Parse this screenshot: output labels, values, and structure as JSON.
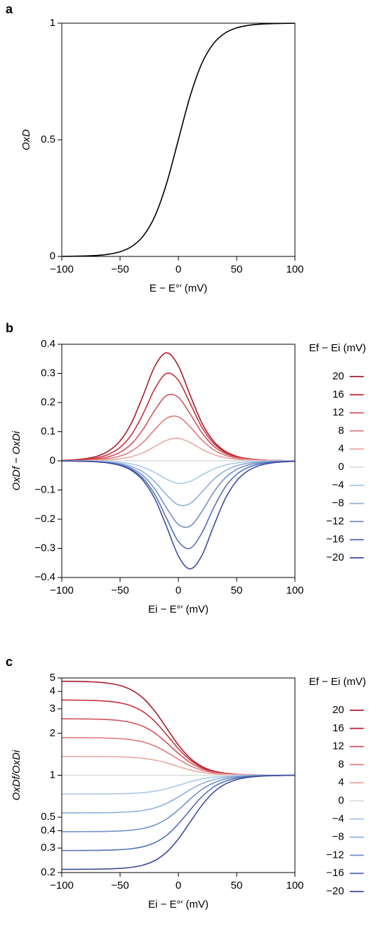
{
  "chart_data": [
    {
      "type": "line",
      "panel_label": "a",
      "x_label": "E − E°′ (mV)",
      "y_label": "OxD",
      "x": [
        -100,
        -90,
        -80,
        -70,
        -60,
        -50,
        -40,
        -30,
        -20,
        -10,
        0,
        10,
        20,
        30,
        40,
        50,
        60,
        70,
        80,
        90,
        100
      ],
      "xlim": [
        -100,
        100
      ],
      "xticks": [
        {
          "value": -100,
          "label": "−100"
        },
        {
          "value": -50,
          "label": "−50"
        },
        0,
        50,
        100
      ],
      "ylim": [
        0,
        1
      ],
      "yticks": [
        0,
        0.5,
        1
      ],
      "series": [
        {
          "color": "#000000",
          "values": [
            0.0004,
            0.0009,
            0.002,
            0.0043,
            0.0093,
            0.02,
            0.0426,
            0.0883,
            0.1741,
            0.3147,
            0.5,
            0.6853,
            0.8259,
            0.9117,
            0.9574,
            0.98,
            0.9907,
            0.9957,
            0.998,
            0.9991,
            0.9996
          ]
        }
      ]
    },
    {
      "type": "line",
      "panel_label": "b",
      "x_label": "Ei − E°′ (mV)",
      "y_label": "OxDf − OxDi",
      "legend_title": "Ef − Ei (mV)",
      "legend_position": "right",
      "x": [
        -100,
        -90,
        -80,
        -70,
        -60,
        -50,
        -40,
        -30,
        -20,
        -10,
        0,
        10,
        20,
        30,
        40,
        50,
        60,
        70,
        80,
        90,
        100
      ],
      "xlim": [
        -100,
        100
      ],
      "xticks": [
        {
          "value": -100,
          "label": "−100"
        },
        {
          "value": -50,
          "label": "−50"
        },
        0,
        50,
        100
      ],
      "ylim": [
        -0.4,
        0.4
      ],
      "yticks": [
        {
          "value": -0.4,
          "label": "−0.4"
        },
        {
          "value": -0.3,
          "label": "−0.3"
        },
        {
          "value": -0.2,
          "label": "−0.2"
        },
        {
          "value": -0.1,
          "label": "−0.1"
        },
        0,
        0.1,
        0.2,
        0.3,
        0.4
      ],
      "series": [
        {
          "name": "20",
          "color": "#a81c2c",
          "values": [
            0.0016,
            0.0034,
            0.0073,
            0.0157,
            0.0333,
            0.0683,
            0.1316,
            0.2264,
            0.3259,
            0.3706,
            0.3259,
            0.2264,
            0.1316,
            0.0683,
            0.0333,
            0.0157,
            0.0073,
            0.0034,
            0.0016,
            0.0007,
            0.0003
          ]
        },
        {
          "name": "16",
          "color": "#c5303e",
          "values": [
            0.001,
            0.0022,
            0.0048,
            0.0104,
            0.0222,
            0.0462,
            0.0912,
            0.1634,
            0.2487,
            0.3,
            0.2765,
            0.1979,
            0.1169,
            0.0612,
            0.0299,
            0.0142,
            0.0066,
            0.003,
            0.0014,
            0.0006,
            0.0003
          ]
        },
        {
          "name": "12",
          "color": "#d4525a",
          "values": [
            0.0006,
            0.0014,
            0.003,
            0.0065,
            0.014,
            0.0294,
            0.0591,
            0.1094,
            0.175,
            0.2242,
            0.2179,
            0.1618,
            0.0976,
            0.0516,
            0.0254,
            0.012,
            0.0056,
            0.0026,
            0.0012,
            0.0006,
            0.0003
          ]
        },
        {
          "name": "8",
          "color": "#df7a78",
          "values": [
            0.0004,
            0.0008,
            0.0017,
            0.0037,
            0.0079,
            0.0166,
            0.034,
            0.0646,
            0.108,
            0.1465,
            0.1508,
            0.117,
            0.0725,
            0.0389,
            0.0193,
            0.0092,
            0.0043,
            0.002,
            0.0009,
            0.0004,
            0.0002
          ]
        },
        {
          "name": "4",
          "color": "#eaa9a3",
          "values": [
            0.0002,
            0.0003,
            0.0007,
            0.0016,
            0.0033,
            0.0071,
            0.0147,
            0.0285,
            0.0494,
            0.0706,
            0.0772,
            0.063,
            0.0404,
            0.0221,
            0.011,
            0.0053,
            0.0025,
            0.0011,
            0.0005,
            0.0002,
            0.0001
          ]
        },
        {
          "name": "0",
          "color": "#dcdcdc",
          "values": [
            0,
            0,
            0,
            0,
            0,
            0,
            0,
            0,
            0,
            0,
            0,
            0,
            0,
            0,
            0,
            0,
            0,
            0,
            0,
            0,
            0
          ]
        },
        {
          "name": "−4",
          "color": "#abc9e7",
          "values": [
            -0.0001,
            -0.0002,
            -0.0005,
            -0.0011,
            -0.0025,
            -0.0053,
            -0.011,
            -0.0221,
            -0.0404,
            -0.063,
            -0.0772,
            -0.0706,
            -0.0494,
            -0.0285,
            -0.0147,
            -0.0071,
            -0.0033,
            -0.0016,
            -0.0007,
            -0.0003,
            -0.0002
          ]
        },
        {
          "name": "−8",
          "color": "#8eafda",
          "values": [
            -0.0002,
            -0.0004,
            -0.0009,
            -0.002,
            -0.0043,
            -0.0092,
            -0.0193,
            -0.0389,
            -0.0725,
            -0.117,
            -0.1508,
            -0.1465,
            -0.108,
            -0.0646,
            -0.034,
            -0.0166,
            -0.0079,
            -0.0037,
            -0.0017,
            -0.0008,
            -0.0004
          ]
        },
        {
          "name": "−12",
          "color": "#7190c7",
          "values": [
            -0.0003,
            -0.0006,
            -0.0012,
            -0.0026,
            -0.0056,
            -0.012,
            -0.0254,
            -0.0516,
            -0.0976,
            -0.1618,
            -0.2179,
            -0.2242,
            -0.175,
            -0.1094,
            -0.0591,
            -0.0294,
            -0.014,
            -0.0065,
            -0.003,
            -0.0014,
            -0.0006
          ]
        },
        {
          "name": "−16",
          "color": "#5670b5",
          "values": [
            -0.0003,
            -0.0006,
            -0.0014,
            -0.003,
            -0.0066,
            -0.0142,
            -0.0299,
            -0.0612,
            -0.1169,
            -0.1979,
            -0.2765,
            -0.3,
            -0.2487,
            -0.1634,
            -0.0912,
            -0.0462,
            -0.0222,
            -0.0104,
            -0.0048,
            -0.0022,
            -0.001
          ]
        },
        {
          "name": "−20",
          "color": "#3d4c9e",
          "values": [
            -0.0003,
            -0.0007,
            -0.0016,
            -0.0034,
            -0.0073,
            -0.0157,
            -0.0333,
            -0.0683,
            -0.1316,
            -0.2264,
            -0.3259,
            -0.3706,
            -0.3259,
            -0.2264,
            -0.1316,
            -0.0683,
            -0.0333,
            -0.0157,
            -0.0073,
            -0.0034,
            -0.0016
          ]
        }
      ]
    },
    {
      "type": "line",
      "panel_label": "c",
      "x_label": "Ei − E°′ (mV)",
      "y_label": "OxDf/OxDi",
      "legend_title": "Ef − Ei (mV)",
      "legend_position": "right",
      "yscale": "log",
      "x": [
        -100,
        -90,
        -80,
        -70,
        -60,
        -50,
        -40,
        -30,
        -20,
        -10,
        0,
        10,
        20,
        30,
        40,
        50,
        60,
        70,
        80,
        90,
        100
      ],
      "xlim": [
        -100,
        100
      ],
      "xticks": [
        {
          "value": -100,
          "label": "−100"
        },
        {
          "value": -50,
          "label": "−50"
        },
        0,
        50,
        100
      ],
      "ylim": [
        0.2,
        5
      ],
      "yticks": [
        0.2,
        0.3,
        0.4,
        0.5,
        1,
        2,
        3,
        4,
        5
      ],
      "series": [
        {
          "name": "20",
          "color": "#a81c2c",
          "values": [
            4.7353,
            4.7265,
            4.7078,
            4.6678,
            4.5835,
            4.4124,
            4.0909,
            3.5649,
            2.8714,
            2.1778,
            1.6517,
            1.3304,
            1.1593,
            1.0749,
            1.0348,
            1.016,
            1.0074,
            1.0034,
            1.0016,
            1.0007,
            1.0003
          ]
        },
        {
          "name": "16",
          "color": "#c5303e",
          "values": [
            3.4703,
            3.466,
            3.4571,
            3.4374,
            3.396,
            3.3101,
            3.1429,
            2.8512,
            2.428,
            1.9533,
            1.553,
            1.2888,
            1.1416,
            1.0671,
            1.0313,
            1.0144,
            1.0067,
            1.0031,
            1.0014,
            1.0006,
            1.0003
          ]
        },
        {
          "name": "12",
          "color": "#d4525a",
          "values": [
            2.543,
            2.541,
            2.5369,
            2.5278,
            2.5086,
            2.4683,
            2.3876,
            2.2393,
            2.0053,
            1.7123,
            1.4358,
            1.2361,
            1.1182,
            1.0566,
            1.0265,
            1.0123,
            1.0057,
            1.0026,
            1.0012,
            1.0005,
            1.0003
          ]
        },
        {
          "name": "8",
          "color": "#df7a78",
          "values": [
            1.8632,
            1.8624,
            1.8607,
            1.8569,
            1.849,
            1.8322,
            1.7977,
            1.7318,
            1.6201,
            1.4655,
            1.3016,
            1.1708,
            1.0878,
            1.0427,
            1.0201,
            1.0094,
            1.0043,
            1.002,
            1.0009,
            1.0004,
            1.0002
          ]
        },
        {
          "name": "4",
          "color": "#eaa9a3",
          "values": [
            1.365,
            1.3648,
            1.3642,
            1.3631,
            1.3606,
            1.3553,
            1.3443,
            1.3226,
            1.2836,
            1.2245,
            1.1544,
            1.0919,
            1.0489,
            1.0242,
            1.0115,
            1.0054,
            1.0025,
            1.0011,
            1.0005,
            1.0002,
            1.0001
          ]
        },
        {
          "name": "0",
          "color": "#dcdcdc",
          "values": [
            1,
            1,
            1,
            1,
            1,
            1,
            1,
            1,
            1,
            1,
            1,
            1,
            1,
            1,
            1,
            1,
            1,
            1,
            1,
            1,
            1
          ]
        },
        {
          "name": "−4",
          "color": "#abc9e7",
          "values": [
            0.7326,
            0.7327,
            0.7329,
            0.7333,
            0.7343,
            0.7364,
            0.7409,
            0.7502,
            0.7683,
            0.7998,
            0.8456,
            0.8969,
            0.9402,
            0.9688,
            0.9847,
            0.9927,
            0.9966,
            0.9984,
            0.9993,
            0.9997,
            0.9999
          ]
        },
        {
          "name": "−8",
          "color": "#8eafda",
          "values": [
            0.5366,
            0.5367,
            0.537,
            0.5376,
            0.5389,
            0.5416,
            0.5473,
            0.5594,
            0.5836,
            0.6281,
            0.6984,
            0.7863,
            0.8692,
            0.9291,
            0.9645,
            0.983,
            0.992,
            0.9963,
            0.9983,
            0.9992,
            0.9996
          ]
        },
        {
          "name": "−12",
          "color": "#7190c7",
          "values": [
            0.3931,
            0.3932,
            0.3935,
            0.394,
            0.3952,
            0.3978,
            0.4034,
            0.4152,
            0.4394,
            0.4858,
            0.5642,
            0.6729,
            0.7881,
            0.88,
            0.9383,
            0.97,
            0.9859,
            0.9934,
            0.997,
            0.9986,
            0.9994
          ]
        },
        {
          "name": "−16",
          "color": "#5670b5",
          "values": [
            0.288,
            0.288,
            0.2883,
            0.2887,
            0.2898,
            0.292,
            0.2969,
            0.3072,
            0.3286,
            0.371,
            0.447,
            0.5623,
            0.6989,
            0.8208,
            0.9047,
            0.9528,
            0.9775,
            0.9895,
            0.9951,
            0.9978,
            0.999
          ]
        },
        {
          "name": "−20",
          "color": "#3d4c9e",
          "values": [
            0.2109,
            0.211,
            0.2112,
            0.2116,
            0.2124,
            0.2142,
            0.2182,
            0.2266,
            0.2444,
            0.2805,
            0.3483,
            0.4592,
            0.6054,
            0.7517,
            0.8626,
            0.9303,
            0.9664,
            0.9842,
            0.9927,
            0.9966,
            0.9984
          ]
        }
      ]
    }
  ]
}
